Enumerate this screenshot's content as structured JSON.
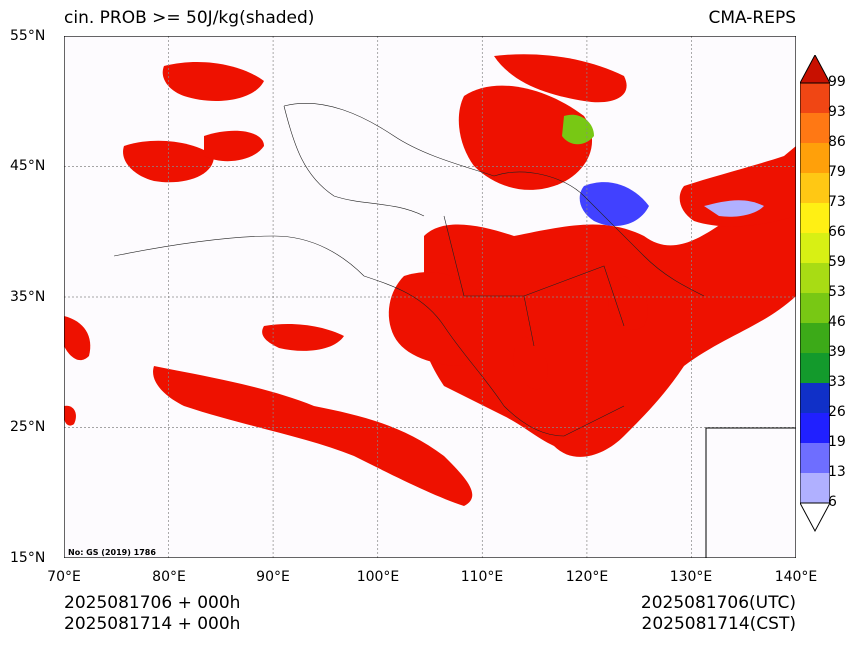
{
  "header": {
    "title_left": "cin. PROB >= 50J/kg(shaded)",
    "title_right": "CMA-REPS"
  },
  "map": {
    "lon_range": [
      70,
      140
    ],
    "lat_range": [
      15,
      55
    ],
    "lat_ticks": [
      "15°N",
      "25°N",
      "35°N",
      "45°N",
      "55°N"
    ],
    "lon_ticks": [
      "70°E",
      "80°E",
      "90°E",
      "100°E",
      "110°E",
      "120°E",
      "130°E",
      "140°E"
    ],
    "gridlines": true,
    "inset": "lower-right",
    "approval_note": "No: GS (2019) 1786"
  },
  "colorbar": {
    "levels": [
      "6",
      "13",
      "19",
      "26",
      "33",
      "39",
      "46",
      "53",
      "59",
      "66",
      "73",
      "79",
      "86",
      "93",
      "99"
    ],
    "colors": [
      "#b0b0ff",
      "#6e6eff",
      "#2020ff",
      "#1030c8",
      "#139a2c",
      "#3caa18",
      "#78c814",
      "#a8dc14",
      "#d8f014",
      "#fff014",
      "#ffc814",
      "#ffa00a",
      "#ff7814",
      "#f04614",
      "#e81a0a",
      "#c81000"
    ],
    "extend": "both"
  },
  "footer": {
    "left_line1": "2025081706  +  000h",
    "left_line2": "2025081714  +  000h",
    "right_line1": "2025081706(UTC)",
    "right_line2": "2025081714(CST)"
  }
}
